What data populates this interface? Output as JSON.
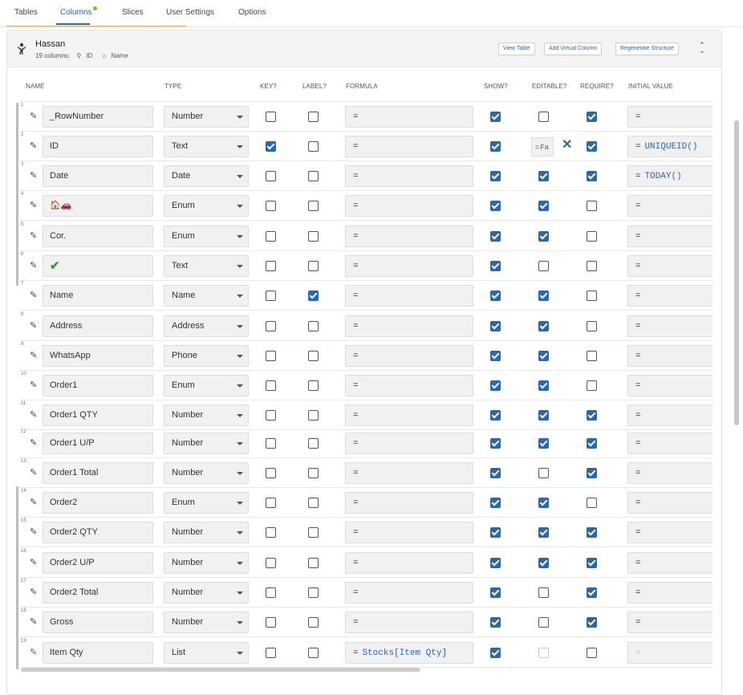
{
  "tabs": [
    {
      "label": "Tables",
      "active": false
    },
    {
      "label": "Columns",
      "active": true,
      "has_dot": true
    },
    {
      "label": "Slices",
      "active": false
    },
    {
      "label": "User Settings",
      "active": false
    },
    {
      "label": "Options",
      "active": false
    }
  ],
  "table": {
    "name": "Hassan",
    "columns_count": "19 columns:",
    "key_label": "ID",
    "label_label": "Name",
    "buttons": {
      "view_table": "View Table",
      "add_virtual_column": "Add Virtual Column",
      "regenerate_structure": "Regenerate Structure"
    }
  },
  "headers": {
    "name": "NAME",
    "type": "TYPE",
    "key": "KEY?",
    "label": "LABEL?",
    "formula": "FORMULA",
    "show": "SHOW?",
    "editable": "EDITABLE?",
    "require": "REQUIRE?",
    "initial_value": "INITIAL VALUE"
  },
  "rows": [
    {
      "num": "1",
      "name": "_RowNumber",
      "type": "Number",
      "key": false,
      "label": false,
      "formula": "=",
      "formula_expr": "",
      "show": true,
      "editable": false,
      "require": true,
      "initial": "=",
      "initial_expr": ""
    },
    {
      "num": "2",
      "name": "ID",
      "type": "Text",
      "key": true,
      "label": false,
      "formula": "=",
      "formula_expr": "",
      "show": true,
      "editable_formula": "=",
      "editable_expr": "Fa",
      "require": true,
      "initial": "=",
      "initial_expr": "UNIQUEID()"
    },
    {
      "num": "3",
      "name": "Date",
      "type": "Date",
      "key": false,
      "label": false,
      "formula": "=",
      "formula_expr": "",
      "show": true,
      "editable": true,
      "require": true,
      "initial": "=",
      "initial_expr": "TODAY()"
    },
    {
      "num": "4",
      "name": "🏠🚗",
      "type": "Enum",
      "key": false,
      "label": false,
      "formula": "=",
      "formula_expr": "",
      "show": true,
      "editable": true,
      "require": false,
      "initial": "=",
      "initial_expr": ""
    },
    {
      "num": "5",
      "name": "Cor.",
      "type": "Enum",
      "key": false,
      "label": false,
      "formula": "=",
      "formula_expr": "",
      "show": true,
      "editable": true,
      "require": false,
      "initial": "=",
      "initial_expr": ""
    },
    {
      "num": "6",
      "name": "✔",
      "type": "Text",
      "key": false,
      "label": false,
      "formula": "=",
      "formula_expr": "",
      "show": true,
      "editable": false,
      "require": false,
      "initial": "=",
      "initial_expr": ""
    },
    {
      "num": "7",
      "name": "Name",
      "type": "Name",
      "key": false,
      "label": true,
      "formula": "=",
      "formula_expr": "",
      "show": true,
      "editable": true,
      "require": false,
      "initial": "=",
      "initial_expr": ""
    },
    {
      "num": "8",
      "name": "Address",
      "type": "Address",
      "key": false,
      "label": false,
      "formula": "=",
      "formula_expr": "",
      "show": true,
      "editable": true,
      "require": false,
      "initial": "=",
      "initial_expr": ""
    },
    {
      "num": "9",
      "name": "WhatsApp",
      "type": "Phone",
      "key": false,
      "label": false,
      "formula": "=",
      "formula_expr": "",
      "show": true,
      "editable": true,
      "require": false,
      "initial": "=",
      "initial_expr": ""
    },
    {
      "num": "10",
      "name": "Order1",
      "type": "Enum",
      "key": false,
      "label": false,
      "formula": "=",
      "formula_expr": "",
      "show": true,
      "editable": true,
      "require": false,
      "initial": "=",
      "initial_expr": ""
    },
    {
      "num": "11",
      "name": "Order1 QTY",
      "type": "Number",
      "key": false,
      "label": false,
      "formula": "=",
      "formula_expr": "",
      "show": true,
      "editable": true,
      "require": true,
      "initial": "=",
      "initial_expr": ""
    },
    {
      "num": "12",
      "name": "Order1 U/P",
      "type": "Number",
      "key": false,
      "label": false,
      "formula": "=",
      "formula_expr": "",
      "show": true,
      "editable": true,
      "require": true,
      "initial": "=",
      "initial_expr": ""
    },
    {
      "num": "13",
      "name": "Order1 Total",
      "type": "Number",
      "key": false,
      "label": false,
      "formula": "=",
      "formula_expr": "",
      "show": true,
      "editable": false,
      "require": true,
      "initial": "=",
      "initial_expr": ""
    },
    {
      "num": "14",
      "name": "Order2",
      "type": "Enum",
      "key": false,
      "label": false,
      "formula": "=",
      "formula_expr": "",
      "show": true,
      "editable": true,
      "require": false,
      "initial": "=",
      "initial_expr": ""
    },
    {
      "num": "15",
      "name": "Order2 QTY",
      "type": "Number",
      "key": false,
      "label": false,
      "formula": "=",
      "formula_expr": "",
      "show": true,
      "editable": true,
      "require": true,
      "initial": "=",
      "initial_expr": ""
    },
    {
      "num": "16",
      "name": "Order2 U/P",
      "type": "Number",
      "key": false,
      "label": false,
      "formula": "=",
      "formula_expr": "",
      "show": true,
      "editable": true,
      "require": true,
      "initial": "=",
      "initial_expr": ""
    },
    {
      "num": "17",
      "name": "Order2 Total",
      "type": "Number",
      "key": false,
      "label": false,
      "formula": "=",
      "formula_expr": "",
      "show": true,
      "editable": false,
      "require": true,
      "initial": "=",
      "initial_expr": ""
    },
    {
      "num": "18",
      "name": "Gross",
      "type": "Number",
      "key": false,
      "label": false,
      "formula": "=",
      "formula_expr": "",
      "show": true,
      "editable": false,
      "require": true,
      "initial": "=",
      "initial_expr": ""
    },
    {
      "num": "19",
      "name": "Item Qty",
      "type": "List",
      "key": false,
      "label": false,
      "formula": "=",
      "formula_expr": "Stocks[Item Qty]",
      "show": true,
      "editable": false,
      "editable_dim": true,
      "require": false,
      "initial": "=",
      "initial_expr": "",
      "initial_dim": true,
      "pencil_blue": true
    }
  ],
  "colors": {
    "accent": "#2a67b3",
    "tab_dot": "#e8891a"
  }
}
